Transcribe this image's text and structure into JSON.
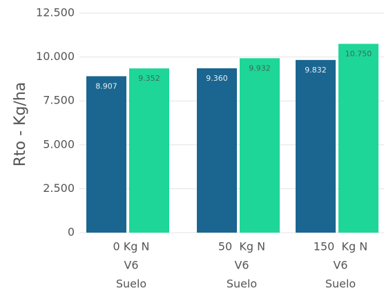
{
  "chart_data": {
    "type": "bar",
    "y_label": "Rto - Kg/ha",
    "categories": [
      [
        "0 Kg N",
        "V6",
        "Suelo"
      ],
      [
        "50  Kg N",
        "V6",
        "Suelo"
      ],
      [
        "150  Kg N",
        "V6",
        "Suelo"
      ]
    ],
    "series": [
      {
        "color": "#1a6690",
        "values": [
          8907,
          9360,
          9832
        ],
        "value_labels": [
          "8.907",
          "9.360",
          "9.832"
        ]
      },
      {
        "color": "#1ed697",
        "values": [
          9352,
          9932,
          10750
        ],
        "value_labels": [
          "9.352",
          "9.932",
          "10.750"
        ]
      }
    ],
    "ylim": [
      0,
      12500
    ],
    "yticks": [
      0,
      {
        "value": 2500,
        "label": "2.500"
      },
      {
        "value": 5000,
        "label": "5.000"
      },
      {
        "value": 7500,
        "label": "7.500"
      },
      {
        "value": 10000,
        "label": "10.000"
      },
      {
        "value": 12500,
        "label": "12.500"
      }
    ],
    "grid": true
  }
}
